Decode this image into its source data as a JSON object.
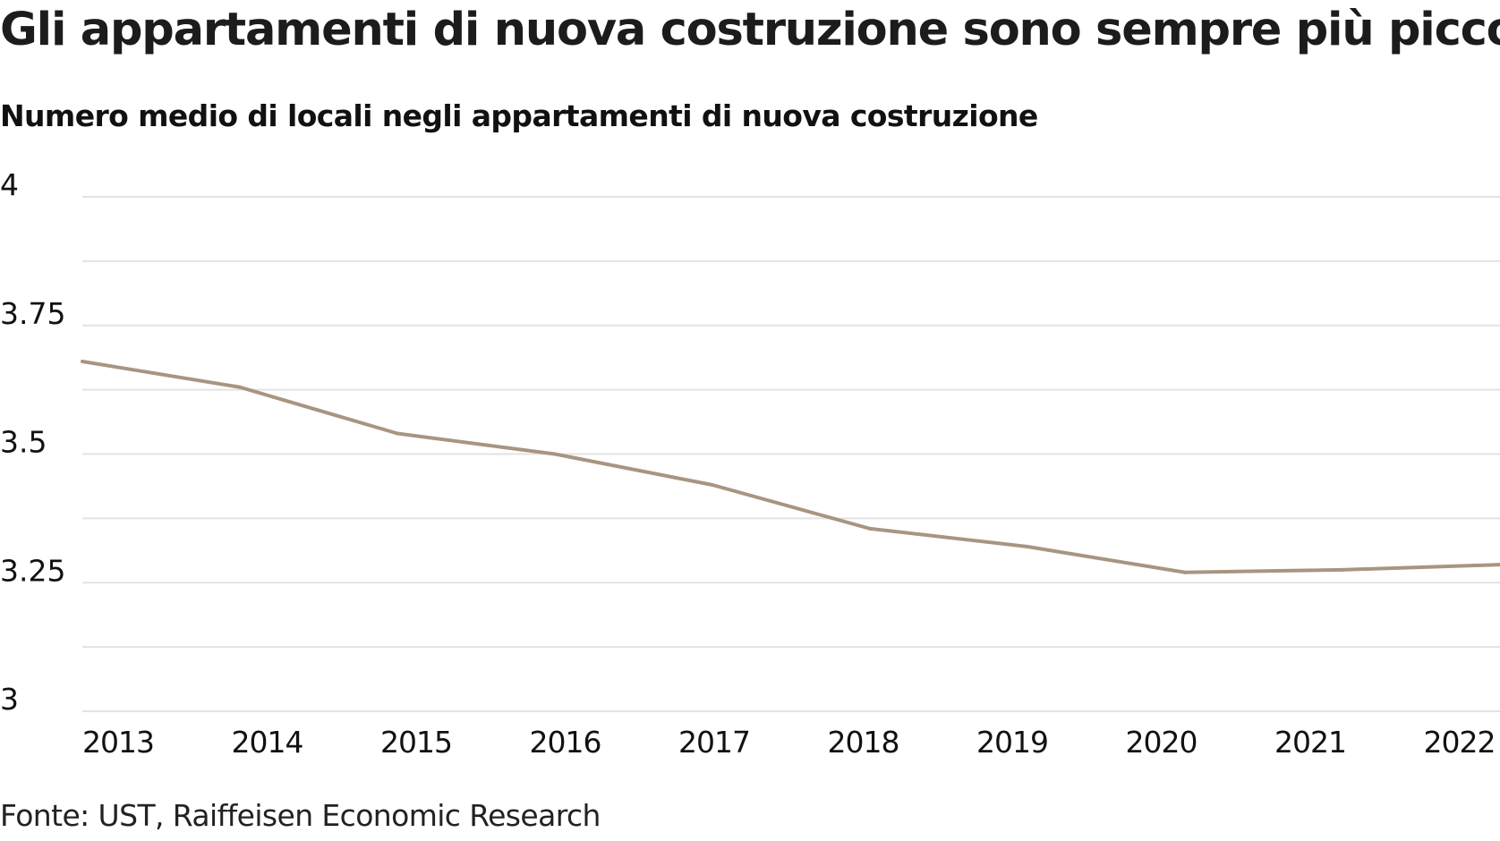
{
  "chart_data": {
    "type": "line",
    "title": "Gli appartamenti di nuova costruzione sono sempre più piccoli",
    "subtitle": "Numero medio di locali negli appartamenti di nuova costruzione",
    "source": "Fonte: UST, Raiffeisen Economic Research",
    "xlabel": "",
    "ylabel": "",
    "categories": [
      "2013",
      "2014",
      "2015",
      "2016",
      "2017",
      "2018",
      "2019",
      "2020",
      "2021",
      "2022"
    ],
    "series": [
      {
        "name": "Numero medio di locali",
        "color": "#a89580",
        "values": [
          3.68,
          3.63,
          3.54,
          3.5,
          3.44,
          3.355,
          3.32,
          3.27,
          3.275,
          3.285
        ]
      }
    ],
    "ylim": [
      3,
      4
    ],
    "yticks": [
      {
        "value": 4,
        "label": "4"
      },
      {
        "value": 3.75,
        "label": "3.75"
      },
      {
        "value": 3.5,
        "label": "3.5"
      },
      {
        "value": 3.25,
        "label": "3.25"
      },
      {
        "value": 3,
        "label": "3"
      }
    ],
    "minor_gridlines": [
      3.875,
      3.625,
      3.375,
      3.125
    ],
    "grid": true,
    "legend": "none",
    "colors": {
      "line": "#a89580",
      "grid": "#e3e3e3",
      "text": "#1a1a1a"
    }
  }
}
